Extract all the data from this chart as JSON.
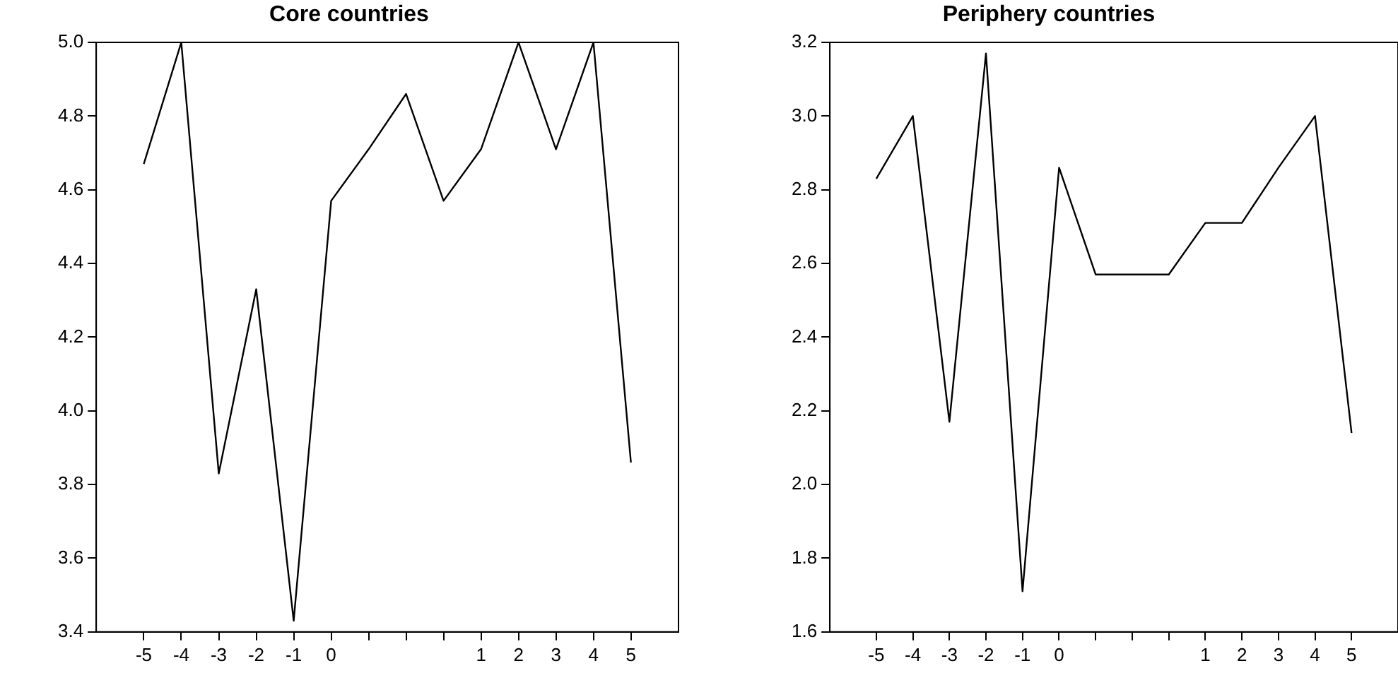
{
  "chart_data": [
    {
      "type": "line",
      "title": "Core countries",
      "categories": [
        "-5",
        "-4",
        "-3",
        "-2",
        "-1",
        "0",
        null,
        null,
        null,
        "1",
        "2",
        "3",
        "4",
        "5"
      ],
      "values": [
        4.67,
        5.0,
        3.83,
        4.33,
        3.43,
        4.57,
        4.71,
        4.86,
        4.57,
        4.71,
        5.0,
        4.71,
        5.0,
        3.86
      ],
      "color": "#000000",
      "ylim": [
        3.4,
        5.0
      ],
      "yticks": [
        {
          "value": 3.4,
          "label": "3.4"
        },
        {
          "value": 3.6,
          "label": "3.6"
        },
        {
          "value": 3.8,
          "label": "3.8"
        },
        {
          "value": 4.0,
          "label": "4.0"
        },
        {
          "value": 4.2,
          "label": "4.2"
        },
        {
          "value": 4.4,
          "label": "4.4"
        },
        {
          "value": 4.6,
          "label": "4.6"
        },
        {
          "value": 4.8,
          "label": "4.8"
        },
        {
          "value": 5.0,
          "label": "5.0"
        }
      ],
      "grid": false,
      "legend": false,
      "marker": "none",
      "line_style": "solid"
    },
    {
      "type": "line",
      "title": "Periphery countries",
      "categories": [
        "-5",
        "-4",
        "-3",
        "-2",
        "-1",
        "0",
        null,
        null,
        null,
        "1",
        "2",
        "3",
        "4",
        "5"
      ],
      "values": [
        2.83,
        3.0,
        2.17,
        3.17,
        1.71,
        2.86,
        2.57,
        2.57,
        2.57,
        2.71,
        2.71,
        2.86,
        3.0,
        2.14
      ],
      "color": "#000000",
      "ylim": [
        1.6,
        3.2
      ],
      "yticks": [
        {
          "value": 1.6,
          "label": "1.6"
        },
        {
          "value": 1.8,
          "label": "1.8"
        },
        {
          "value": 2.0,
          "label": "2.0"
        },
        {
          "value": 2.2,
          "label": "2.2"
        },
        {
          "value": 2.4,
          "label": "2.4"
        },
        {
          "value": 2.6,
          "label": "2.6"
        },
        {
          "value": 2.8,
          "label": "2.8"
        },
        {
          "value": 3.0,
          "label": "3.0"
        },
        {
          "value": 3.2,
          "label": "3.2"
        }
      ],
      "grid": false,
      "legend": false,
      "marker": "none",
      "line_style": "solid"
    }
  ]
}
